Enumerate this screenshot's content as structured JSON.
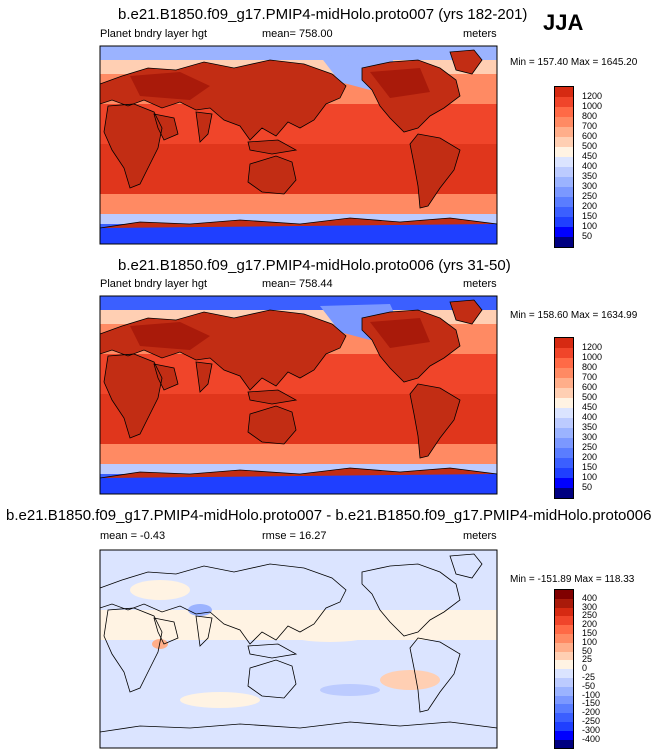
{
  "season": "JJA",
  "colors": {
    "abs_scale": [
      "#000080",
      "#0000ff",
      "#1f3fff",
      "#3b5fff",
      "#5a7dff",
      "#7b98ff",
      "#9bb3ff",
      "#bccbff",
      "#dbe4ff",
      "#fff3e3",
      "#ffcfb3",
      "#ffae8a",
      "#ff8a63",
      "#ff6a46",
      "#f0452a",
      "#d62a12",
      "#a91a0a",
      "#800000"
    ],
    "diff_scale": [
      "#000080",
      "#0000ff",
      "#1f3fff",
      "#3b5fff",
      "#5a7dff",
      "#7b98ff",
      "#9bb3ff",
      "#bccbff",
      "#dbe4ff",
      "#fff3e3",
      "#ffcfb3",
      "#ffae8a",
      "#ff8a63",
      "#ff6a46",
      "#f0452a",
      "#d62a12",
      "#a91a0a",
      "#800000"
    ]
  },
  "panels": [
    {
      "title": "b.e21.B1850.f09_g17.PMIP4-midHolo.proto007 (yrs 182-201)",
      "left_label": "Planet bndry layer hgt",
      "center_label": "mean= 758.00",
      "right_label": "meters",
      "minmax": "Min = 157.40 Max = 1645.20",
      "colorbar_labels": [
        "1200",
        "1000",
        "800",
        "700",
        "600",
        "500",
        "450",
        "400",
        "350",
        "300",
        "250",
        "200",
        "150",
        "100",
        "50"
      ]
    },
    {
      "title": "b.e21.B1850.f09_g17.PMIP4-midHolo.proto006 (yrs 31-50)",
      "left_label": "Planet bndry layer hgt",
      "center_label": "mean= 758.44",
      "right_label": "meters",
      "minmax": "Min = 158.60 Max = 1634.99",
      "colorbar_labels": [
        "1200",
        "1000",
        "800",
        "700",
        "600",
        "500",
        "450",
        "400",
        "350",
        "300",
        "250",
        "200",
        "150",
        "100",
        "50"
      ]
    },
    {
      "title": "b.e21.B1850.f09_g17.PMIP4-midHolo.proto007 - b.e21.B1850.f09_g17.PMIP4-midHolo.proto006",
      "left_label": "mean =  -0.43",
      "center_label": "rmse =  16.27",
      "right_label": "meters",
      "minmax": "Min = -151.89 Max = 118.33",
      "colorbar_labels": [
        "400",
        "300",
        "250",
        "200",
        "150",
        "100",
        "50",
        "25",
        "0",
        "-25",
        "-50",
        "-100",
        "-150",
        "-200",
        "-250",
        "-300",
        "-400"
      ]
    }
  ]
}
